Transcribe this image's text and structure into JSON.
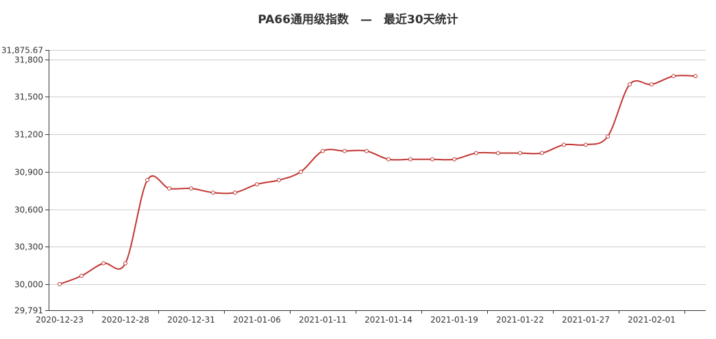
{
  "chart_data": {
    "type": "line",
    "title": "PA66通用级指数　—　最近30天统计",
    "xlabel": "",
    "ylabel": "",
    "x": [
      "2020-12-23",
      "2020-12-24",
      "2020-12-25",
      "2020-12-28",
      "2020-12-29",
      "2020-12-30",
      "2020-12-31",
      "2021-01-04",
      "2021-01-05",
      "2021-01-06",
      "2021-01-07",
      "2021-01-08",
      "2021-01-11",
      "2021-01-12",
      "2021-01-13",
      "2021-01-14",
      "2021-01-15",
      "2021-01-18",
      "2021-01-19",
      "2021-01-20",
      "2021-01-21",
      "2021-01-22",
      "2021-01-25",
      "2021-01-26",
      "2021-01-27",
      "2021-01-28",
      "2021-01-29",
      "2021-02-01",
      "2021-02-02",
      "2021-02-03"
    ],
    "x_tick_labels": [
      "2020-12-23",
      "2020-12-28",
      "2020-12-31",
      "2021-01-06",
      "2021-01-11",
      "2021-01-14",
      "2021-01-19",
      "2021-01-22",
      "2021-01-27",
      "2021-02-01"
    ],
    "y_tick_labels": [
      "29,791",
      "30,000",
      "30,300",
      "30,600",
      "30,900",
      "31,200",
      "31,500",
      "31,800",
      "31,875.67"
    ],
    "y_ticks": [
      29791,
      30000,
      30300,
      30600,
      30900,
      31200,
      31500,
      31800,
      31875.67
    ],
    "ylim": [
      29791,
      31875.67
    ],
    "series": [
      {
        "values": [
          30000,
          30066.67,
          30166.67,
          30166.67,
          30833.33,
          30766.67,
          30766.67,
          30733.33,
          30733.33,
          30800,
          30833.33,
          30900,
          31066.67,
          31066.67,
          31066.67,
          31000,
          31000,
          31000,
          31000,
          31050,
          31050,
          31050,
          31050,
          31116.67,
          31116.67,
          31183.33,
          31600,
          31600,
          31666.67,
          31666.67
        ],
        "color": "#c23531"
      }
    ],
    "grid": true,
    "legend": "none",
    "colors": {
      "line": "#c23531",
      "grid": "#cccccc",
      "axis": "#333333",
      "text": "#333333"
    }
  }
}
